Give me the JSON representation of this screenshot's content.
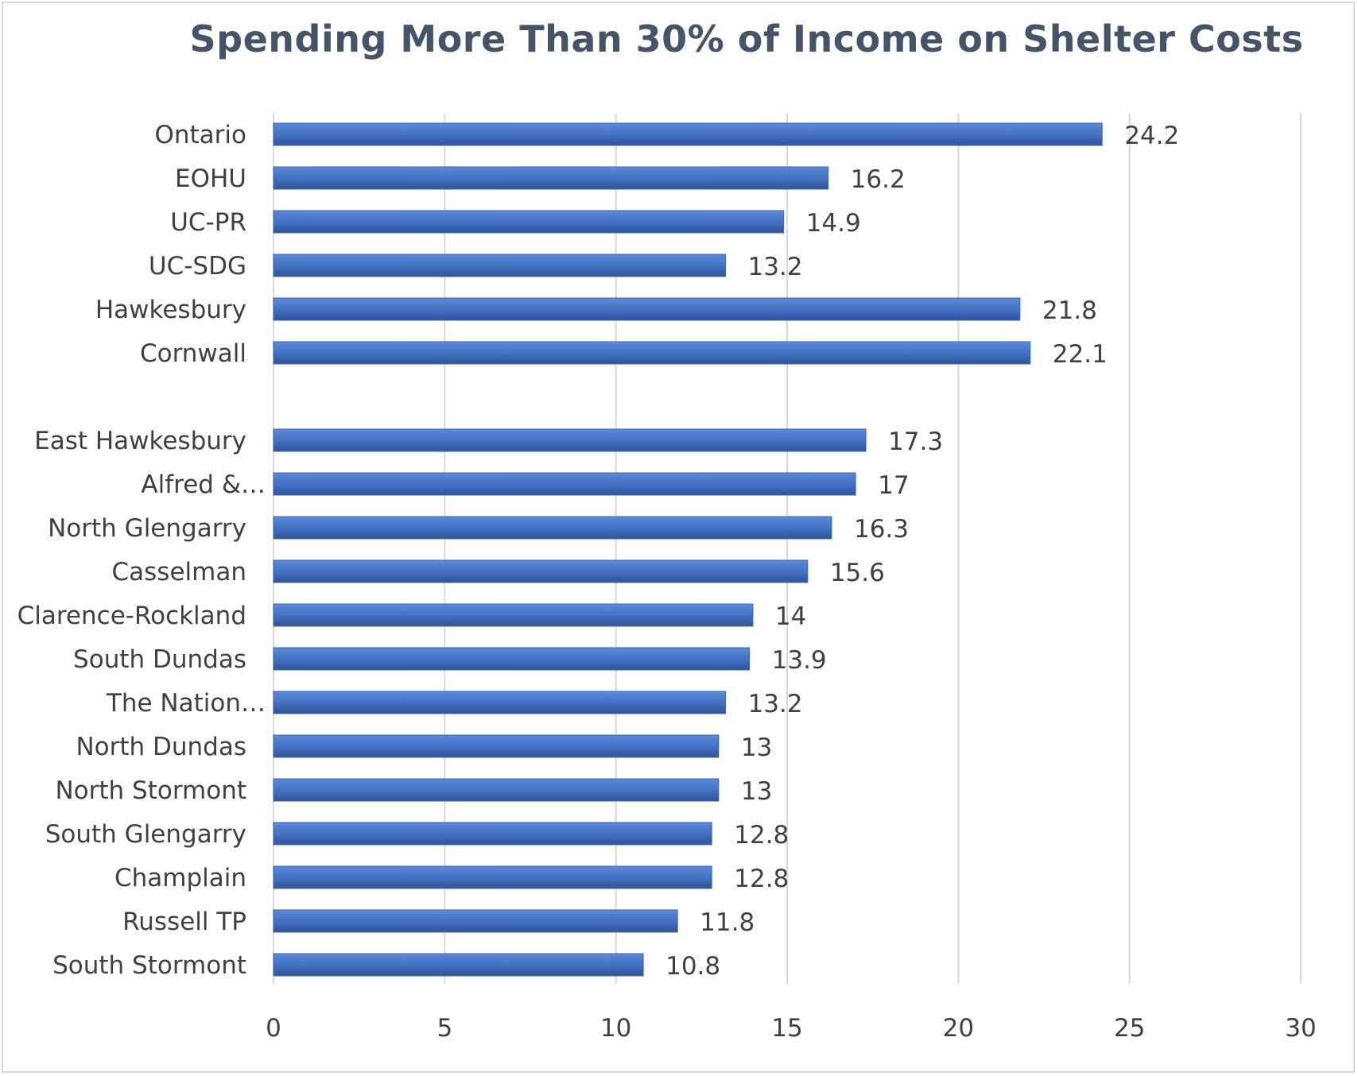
{
  "chart_data": {
    "type": "bar",
    "orientation": "horizontal",
    "title": "Spending More Than 30% of Income on Shelter Costs",
    "xlabel": "",
    "ylabel": "",
    "xlim": [
      0,
      30
    ],
    "xticks": [
      0,
      5,
      10,
      15,
      20,
      25,
      30
    ],
    "grid": true,
    "legend": "none",
    "bar_color": "#4472c4",
    "categories": [
      "Ontario",
      "EOHU",
      "UC-PR",
      "UC-SDG",
      "Hawkesbury",
      "Cornwall",
      "",
      "East Hawkesbury",
      "Alfred &…",
      "North Glengarry",
      "Casselman",
      "Clarence-Rockland",
      "South Dundas",
      "The Nation…",
      "North Dundas",
      "North Stormont",
      "South Glengarry",
      "Champlain",
      "Russell TP",
      "South Stormont"
    ],
    "values": [
      24.2,
      16.2,
      14.9,
      13.2,
      21.8,
      22.1,
      null,
      17.3,
      17,
      16.3,
      15.6,
      14,
      13.9,
      13.2,
      13,
      13,
      12.8,
      12.8,
      11.8,
      10.8
    ]
  }
}
